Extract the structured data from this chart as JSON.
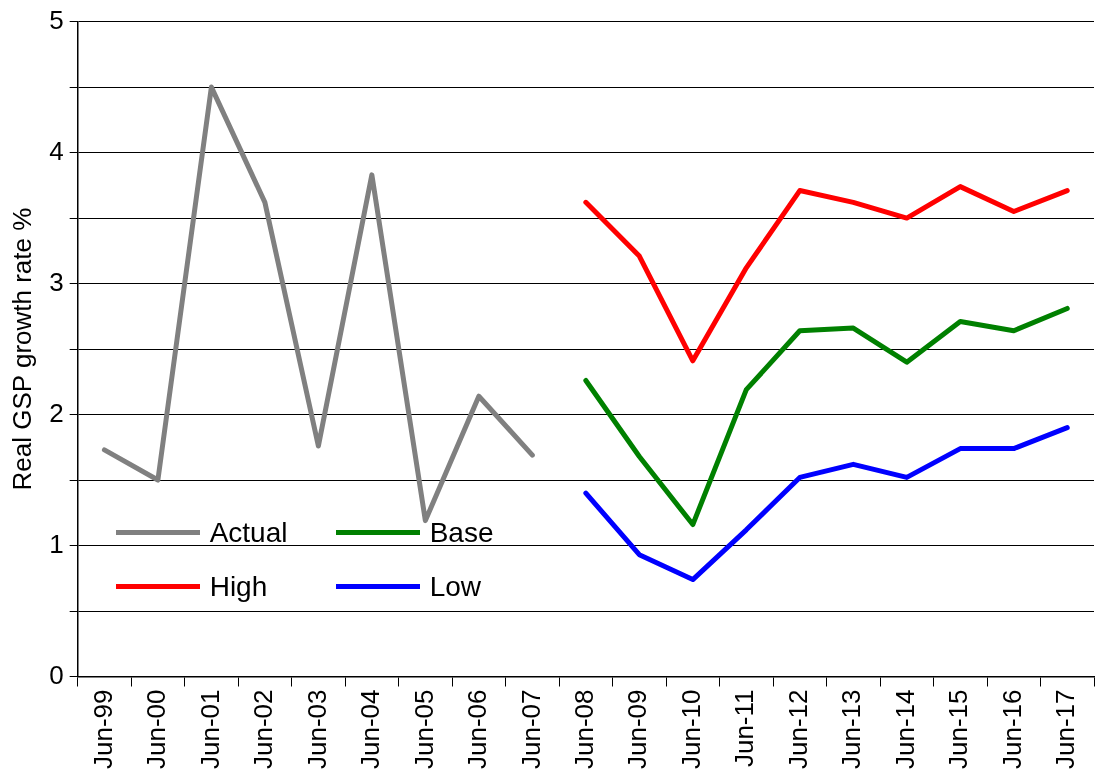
{
  "chart_data": {
    "type": "line",
    "ylabel": "Real GSP growth rate %",
    "categories": [
      "Jun-99",
      "Jun-00",
      "Jun-01",
      "Jun-02",
      "Jun-03",
      "Jun-04",
      "Jun-05",
      "Jun-06",
      "Jun-07",
      "Jun-08",
      "Jun-09",
      "Jun-10",
      "Jun-11",
      "Jun-12",
      "Jun-13",
      "Jun-14",
      "Jun-15",
      "Jun-16",
      "Jun-17"
    ],
    "series": [
      {
        "name": "Actual",
        "color": "#808080",
        "values": [
          1.73,
          1.5,
          4.5,
          3.62,
          1.76,
          3.83,
          1.19,
          2.14,
          1.69,
          null,
          null,
          null,
          null,
          null,
          null,
          null,
          null,
          null,
          null
        ]
      },
      {
        "name": "Base",
        "color": "#008000",
        "values": [
          null,
          null,
          null,
          null,
          null,
          null,
          null,
          null,
          null,
          2.26,
          1.68,
          1.16,
          2.19,
          2.64,
          2.66,
          2.4,
          2.71,
          2.64,
          2.81
        ]
      },
      {
        "name": "High",
        "color": "#ff0000",
        "values": [
          null,
          null,
          null,
          null,
          null,
          null,
          null,
          null,
          null,
          3.62,
          3.21,
          2.41,
          3.12,
          3.71,
          3.62,
          3.5,
          3.74,
          3.55,
          3.71
        ]
      },
      {
        "name": "Low",
        "color": "#0000ff",
        "values": [
          null,
          null,
          null,
          null,
          null,
          null,
          null,
          null,
          null,
          1.4,
          0.93,
          0.74,
          1.12,
          1.52,
          1.62,
          1.52,
          1.74,
          1.74,
          1.9
        ]
      }
    ],
    "ylim": [
      0,
      5
    ],
    "yticks": [
      0,
      {
        "value": 0.5,
        "label": null
      },
      1,
      {
        "value": 1.5,
        "label": null
      },
      2,
      {
        "value": 2.5,
        "label": null
      },
      3,
      {
        "value": 3.5,
        "label": null
      },
      4,
      {
        "value": 4.5,
        "label": null
      },
      5
    ],
    "grid": "y",
    "legend": "bottom left",
    "marker": "none",
    "line_style": "solid"
  }
}
